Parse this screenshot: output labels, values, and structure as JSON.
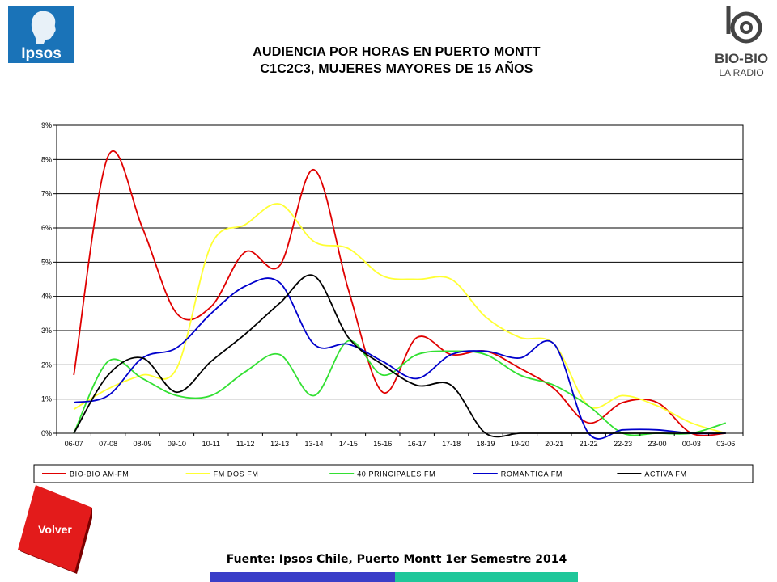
{
  "header": {
    "title_line1": "AUDIENCIA POR HORAS EN PUERTO MONTT",
    "title_line2": "C1C2C3, MUJERES MAYORES DE 15 AÑOS"
  },
  "logos": {
    "left": {
      "text": "Ipsos",
      "icon": "ipsos-head-icon"
    },
    "right": {
      "text_main": "BIO-BIO",
      "text_sub": "LA RADIO",
      "icon": "biobio-logo-icon"
    }
  },
  "footer": {
    "source": "Fuente: Ipsos Chile, Puerto Montt 1er Semestre 2014",
    "volver_label": "Volver"
  },
  "colors": {
    "ipsos_bg": "#1a73b8",
    "volver_red": "#e31b1b",
    "bar_blue": "#3a3ec8",
    "bar_teal": "#1fc79a"
  },
  "chart_data": {
    "type": "line",
    "title": "",
    "xlabel": "",
    "ylabel": "",
    "ylim": [
      0,
      9
    ],
    "y_ticks": [
      "0%",
      "1%",
      "2%",
      "3%",
      "4%",
      "5%",
      "6%",
      "7%",
      "8%",
      "9%"
    ],
    "grid": true,
    "legend_position": "bottom",
    "categories": [
      "06-07",
      "07-08",
      "08-09",
      "09-10",
      "10-11",
      "11-12",
      "12-13",
      "13-14",
      "14-15",
      "15-16",
      "16-17",
      "17-18",
      "18-19",
      "19-20",
      "20-21",
      "21-22",
      "22-23",
      "23-00",
      "00-03",
      "03-06"
    ],
    "series": [
      {
        "name": "BIO-BIO AM-FM",
        "color": "#e00000",
        "values": [
          1.7,
          8.1,
          6.0,
          3.5,
          3.7,
          5.3,
          4.9,
          7.7,
          4.2,
          1.2,
          2.8,
          2.3,
          2.4,
          1.9,
          1.3,
          0.3,
          0.9,
          0.9,
          0.0,
          0.0
        ]
      },
      {
        "name": "FM DOS FM",
        "color": "#ffff33",
        "values": [
          0.7,
          1.3,
          1.7,
          1.9,
          5.5,
          6.1,
          6.7,
          5.6,
          5.4,
          4.6,
          4.5,
          4.5,
          3.4,
          2.8,
          2.6,
          0.8,
          1.1,
          0.8,
          0.3,
          0.0
        ]
      },
      {
        "name": "40 PRINCIPALES FM",
        "color": "#33e033",
        "values": [
          0.0,
          2.1,
          1.6,
          1.1,
          1.1,
          1.8,
          2.3,
          1.1,
          2.7,
          1.7,
          2.3,
          2.4,
          2.3,
          1.7,
          1.4,
          0.8,
          0.0,
          0.0,
          0.0,
          0.3
        ]
      },
      {
        "name": "ROMANTICA FM",
        "color": "#0000cc",
        "values": [
          0.9,
          1.1,
          2.2,
          2.5,
          3.5,
          4.3,
          4.4,
          2.6,
          2.6,
          2.1,
          1.6,
          2.3,
          2.4,
          2.2,
          2.6,
          0.0,
          0.1,
          0.1,
          0.0,
          0.0
        ]
      },
      {
        "name": "ACTIVA FM",
        "color": "#000000",
        "values": [
          0.0,
          1.7,
          2.2,
          1.2,
          2.1,
          2.9,
          3.8,
          4.6,
          2.8,
          2.0,
          1.4,
          1.4,
          0.0,
          0.0,
          0.0,
          0.0,
          0.0,
          0.0,
          0.0,
          0.0
        ]
      }
    ]
  }
}
